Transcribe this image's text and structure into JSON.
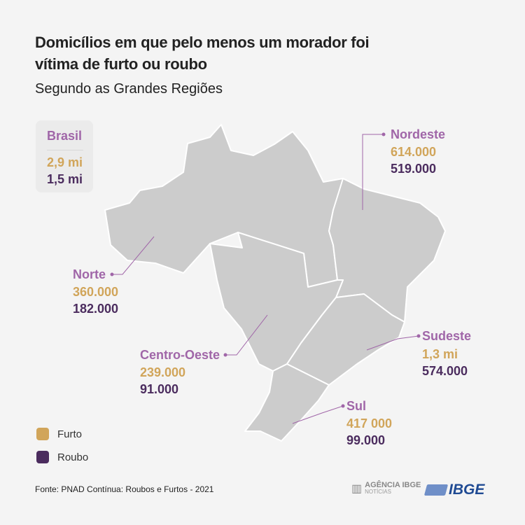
{
  "title": "Domicílios em que pelo menos um morador foi vítima de furto ou roubo",
  "subtitle": "Segundo as Grandes Regiões",
  "colors": {
    "region_label": "#a066a8",
    "furto": "#d1a55a",
    "roubo": "#4b2c5e",
    "map": "#cccccc"
  },
  "brasil": {
    "name": "Brasil",
    "furto": "2,9 mi",
    "roubo": "1,5 mi"
  },
  "regions": {
    "nordeste": {
      "name": "Nordeste",
      "furto": "614.000",
      "roubo": "519.000"
    },
    "norte": {
      "name": "Norte",
      "furto": "360.000",
      "roubo": "182.000"
    },
    "centro_oeste": {
      "name": "Centro-Oeste",
      "furto": "239.000",
      "roubo": "91.000"
    },
    "sudeste": {
      "name": "Sudeste",
      "furto": "1,3 mi",
      "roubo": "574.000"
    },
    "sul": {
      "name": "Sul",
      "furto": "417 000",
      "roubo": "99.000"
    }
  },
  "legend": {
    "furto": "Furto",
    "roubo": "Roubo"
  },
  "source": "Fonte: PNAD Contínua: Roubos e Furtos - 2021",
  "logos": {
    "agencia": "AGÊNCIA IBGE",
    "agencia_sub": "NOTÍCIAS",
    "ibge": "IBGE"
  }
}
